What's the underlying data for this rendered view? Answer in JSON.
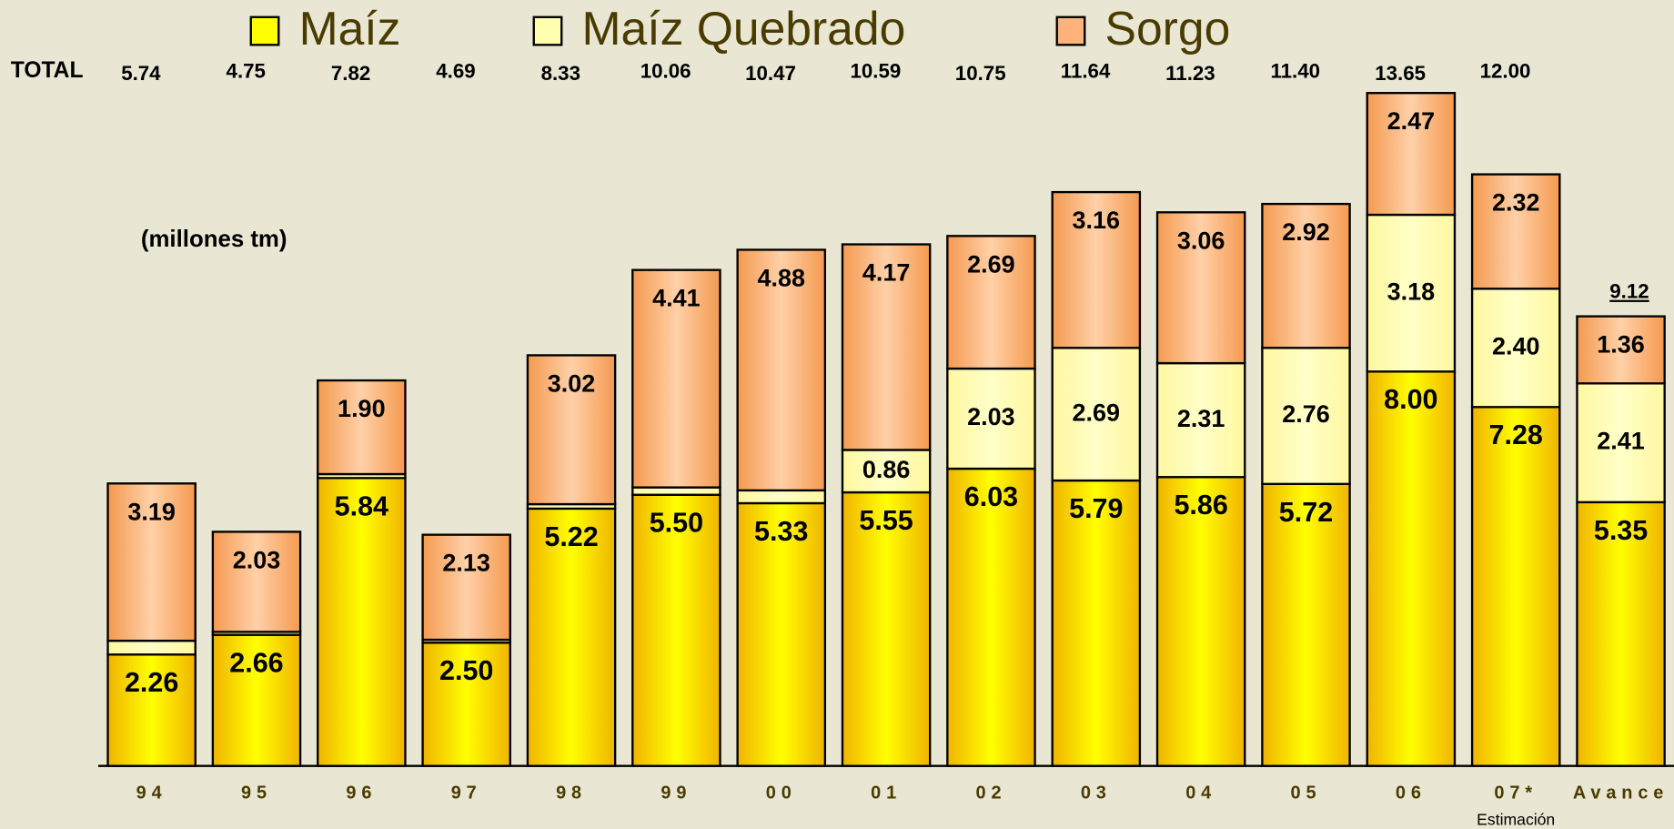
{
  "chart_data": {
    "type": "stacked-bar",
    "categories": [
      "94",
      "95",
      "96",
      "97",
      "98",
      "99",
      "00",
      "01",
      "02",
      "03",
      "04",
      "05",
      "06",
      "07*",
      "Avance"
    ],
    "category_note": "Estimación",
    "annotation": "(millones tm)",
    "totals_label": "TOTAL",
    "totals": [
      5.74,
      4.75,
      7.82,
      4.69,
      8.33,
      10.06,
      10.47,
      10.59,
      10.75,
      11.64,
      11.23,
      11.4,
      13.65,
      12.0,
      9.12
    ],
    "total_labels": [
      "5.74",
      "4.75",
      "7.82",
      "4.69",
      "8.33",
      "10.06",
      "10.47",
      "10.59",
      "10.75",
      "11.64",
      "11.23",
      "11.40",
      "13.65",
      "12.00",
      "9.12"
    ],
    "ylim": [
      0,
      14
    ],
    "series": [
      {
        "name": "Maíz",
        "color": "#ffff00",
        "values": [
          2.26,
          2.66,
          5.84,
          2.5,
          5.22,
          5.5,
          5.33,
          5.55,
          6.03,
          5.79,
          5.86,
          5.72,
          8.0,
          7.28,
          5.35
        ],
        "value_labels": [
          "2.26",
          "2.66",
          "5.84",
          "2.50",
          "5.22",
          "5.50",
          "5.33",
          "5.55",
          "6.03",
          "5.79",
          "5.86",
          "5.72",
          "8.00",
          "7.28",
          "5.35"
        ]
      },
      {
        "name": "Maíz Quebrado",
        "color": "#ffffb0",
        "values": [
          0.28,
          0.06,
          0.08,
          0.06,
          0.09,
          0.15,
          0.26,
          0.86,
          2.03,
          2.69,
          2.31,
          2.76,
          3.18,
          2.4,
          2.41
        ],
        "value_labels": [
          "0.28",
          "0.06",
          "0.08",
          "0.06",
          "0.09",
          "0.15",
          "0.26",
          "0.86",
          "2.03",
          "2.69",
          "2.31",
          "2.76",
          "3.18",
          "2.40",
          "2.41"
        ]
      },
      {
        "name": "Sorgo",
        "color": "#ffb27a",
        "values": [
          3.19,
          2.03,
          1.9,
          2.13,
          3.02,
          4.41,
          4.88,
          4.17,
          2.69,
          3.16,
          3.06,
          2.92,
          2.47,
          2.32,
          1.36
        ],
        "value_labels": [
          "3.19",
          "2.03",
          "1.90",
          "2.13",
          "3.02",
          "4.41",
          "4.88",
          "4.17",
          "2.69",
          "3.16",
          "3.06",
          "2.92",
          "2.47",
          "2.32",
          "1.36"
        ]
      }
    ]
  }
}
